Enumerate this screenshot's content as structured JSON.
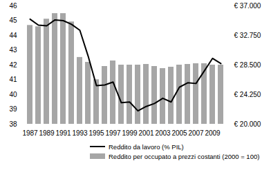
{
  "chart_data": {
    "type": "combo",
    "categories": [
      1987,
      1988,
      1989,
      1990,
      1991,
      1992,
      1993,
      1994,
      1995,
      1996,
      1997,
      1998,
      1999,
      2000,
      2001,
      2002,
      2003,
      2004,
      2005,
      2006,
      2007,
      2008,
      2009,
      2010
    ],
    "xticks": [
      1987,
      1989,
      1991,
      1993,
      1995,
      1997,
      1999,
      2001,
      2003,
      2005,
      2007,
      2009
    ],
    "series": [
      {
        "name": "Reddito da lavoro (% PIL)",
        "type": "line",
        "color": "#000000",
        "values": [
          45.1,
          44.7,
          44.65,
          45.05,
          45.0,
          44.75,
          44.35,
          42.6,
          40.6,
          40.65,
          40.85,
          39.45,
          39.5,
          38.9,
          39.2,
          39.4,
          39.75,
          39.5,
          40.5,
          40.8,
          40.75,
          41.6,
          42.45,
          42.1
        ]
      },
      {
        "name": "Reddito per occupato a prezzi costanti (2000 = 100)",
        "type": "bar",
        "color": "#a6a6a6",
        "axis": "y2",
        "values": [
          34200,
          34000,
          35100,
          35900,
          35900,
          34700,
          29600,
          28900,
          26400,
          28300,
          29100,
          28500,
          28500,
          28500,
          28600,
          28300,
          28000,
          28200,
          28500,
          28600,
          28700,
          28700,
          28500,
          28500
        ]
      }
    ],
    "ylim": [
      38,
      46
    ],
    "yticks": [
      38,
      39,
      40,
      41,
      42,
      43,
      44,
      45,
      46
    ],
    "y2lim": [
      20000,
      37000
    ],
    "y2ticks": [
      {
        "value": 20000,
        "label": "€ 20.000"
      },
      {
        "value": 24250,
        "label": "€ 24.250"
      },
      {
        "value": 28500,
        "label": "€ 28.500"
      },
      {
        "value": 32750,
        "label": "€ 32.750"
      },
      {
        "value": 37000,
        "label": "€ 37.000"
      }
    ],
    "legend": "bottom"
  }
}
